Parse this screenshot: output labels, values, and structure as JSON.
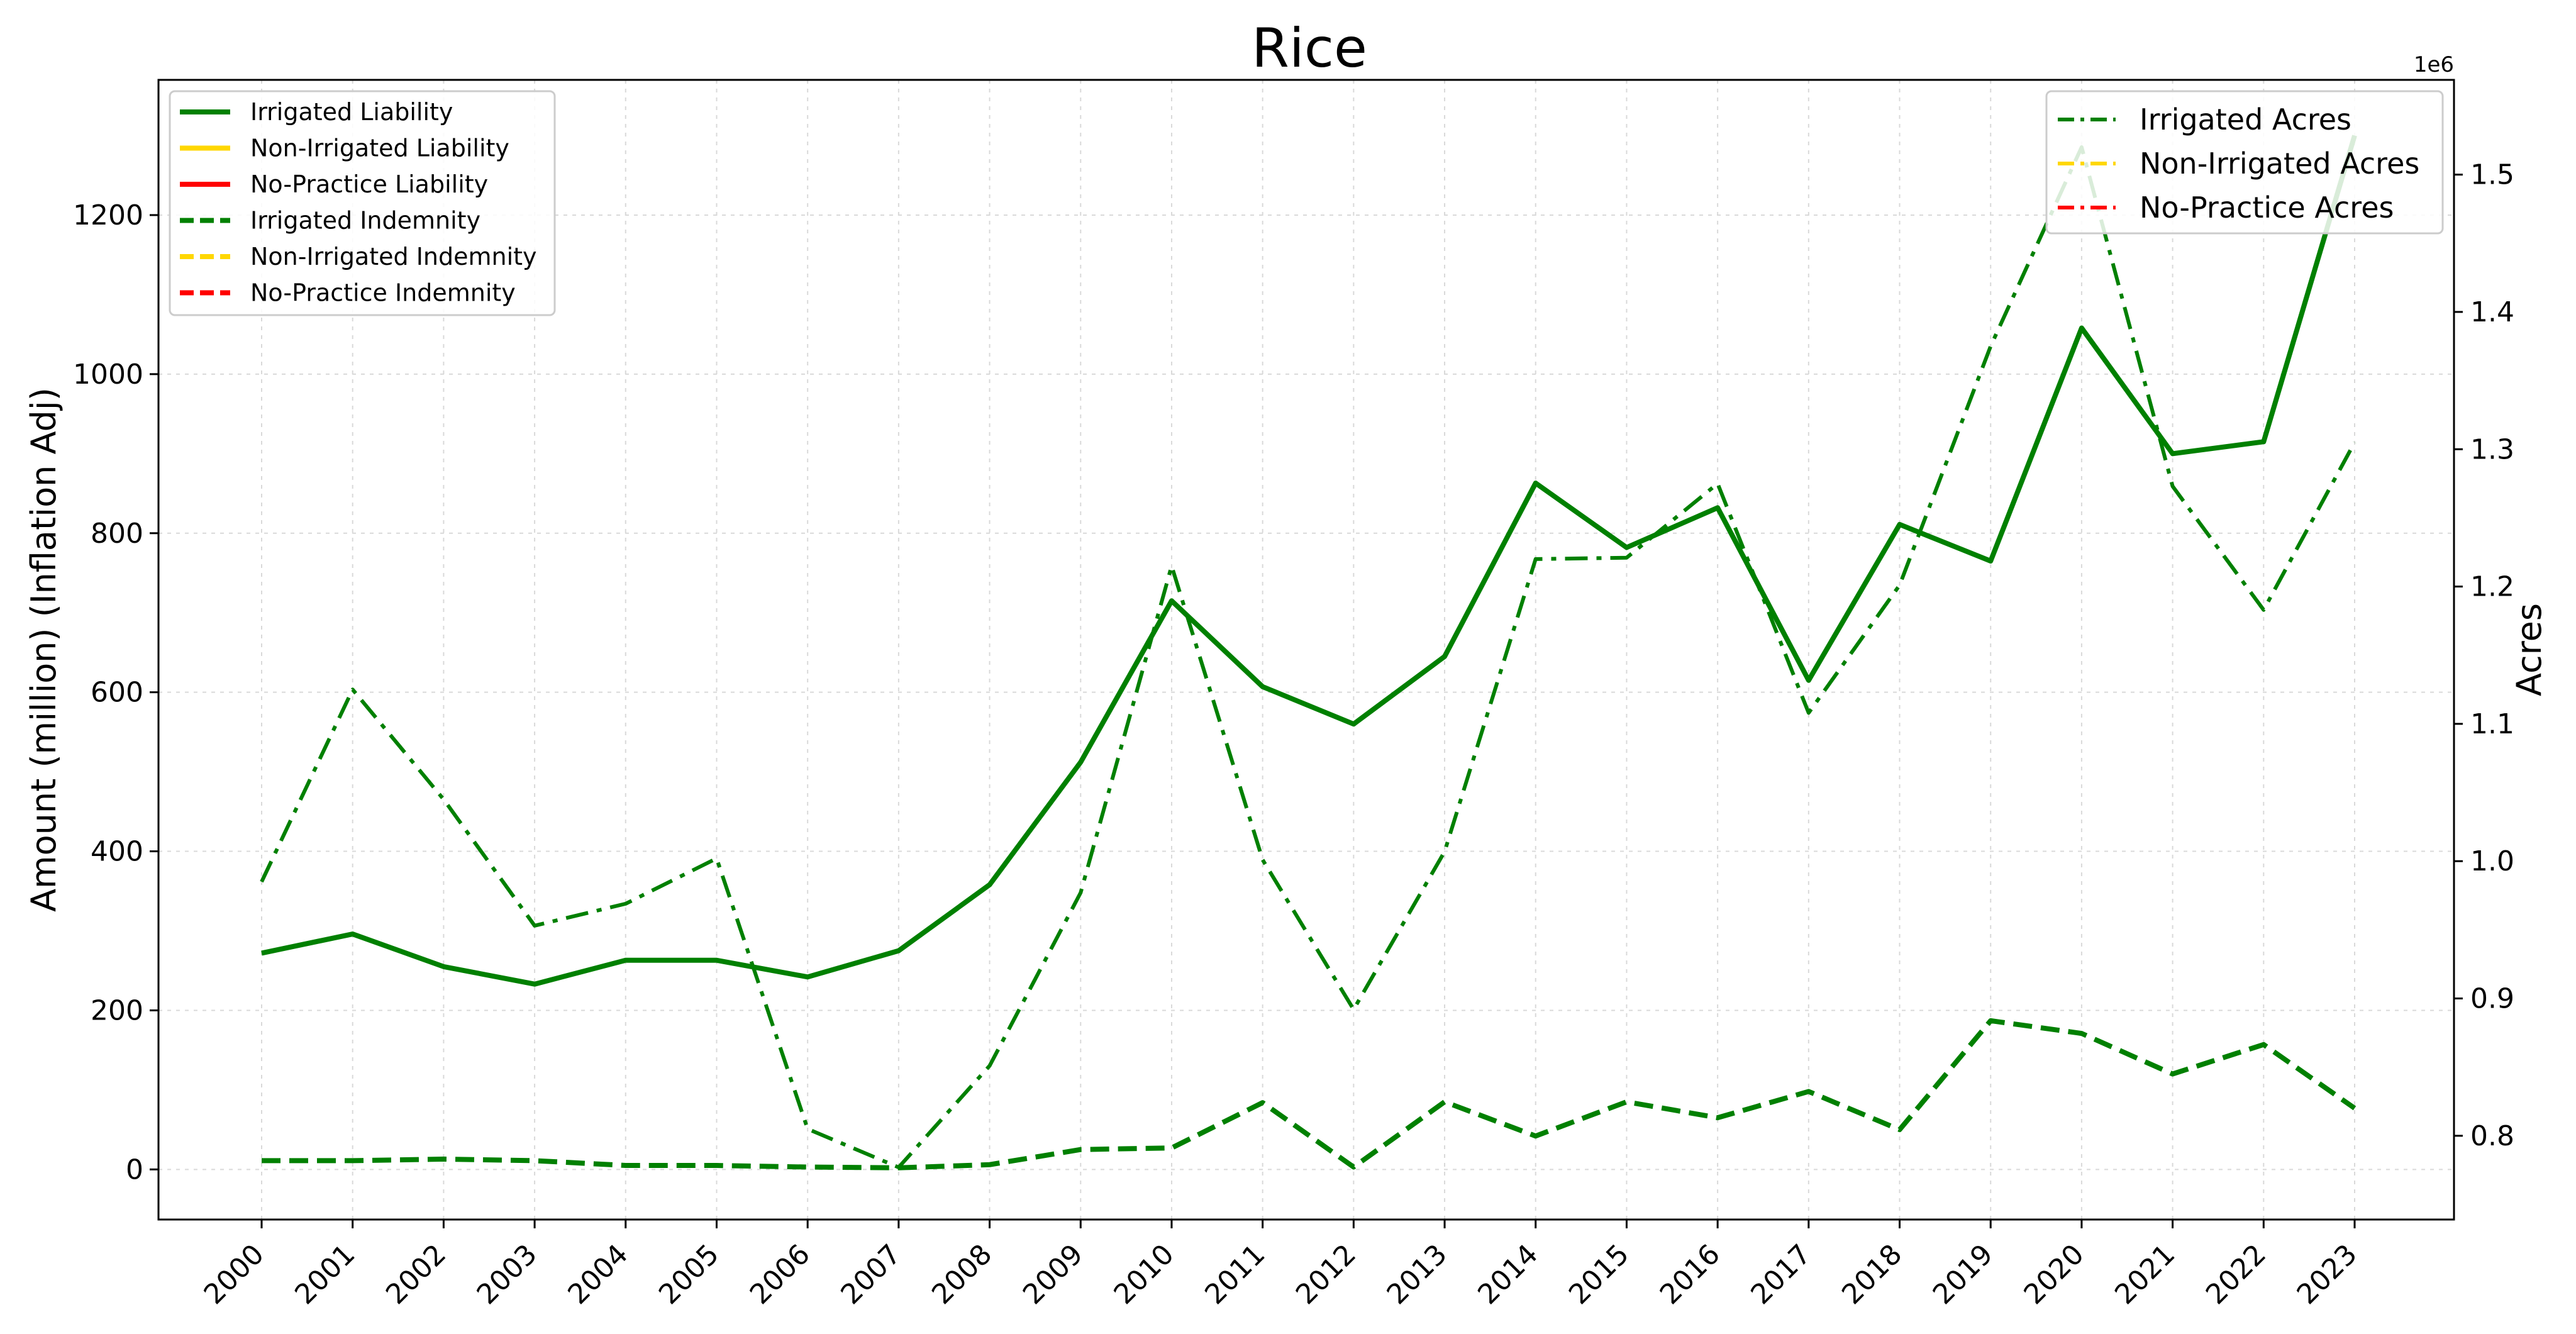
{
  "chart_data": {
    "type": "line",
    "title": "Rice",
    "xlabel": "",
    "ylabel_left": "Amount (million) (Inflation Adj)",
    "ylabel_right": "Acres",
    "right_axis_offset_text": "1e6",
    "x": [
      "2000",
      "2001",
      "2002",
      "2003",
      "2004",
      "2005",
      "2006",
      "2007",
      "2008",
      "2009",
      "2010",
      "2011",
      "2012",
      "2013",
      "2014",
      "2015",
      "2016",
      "2017",
      "2018",
      "2019",
      "2020",
      "2021",
      "2022",
      "2023"
    ],
    "ylim_left": [
      -63,
      1370
    ],
    "yticks_left": [
      "0",
      "200",
      "400",
      "600",
      "800",
      "1000",
      "1200"
    ],
    "ylim_right": [
      0.739,
      1.569
    ],
    "yticks_right": [
      "0.8",
      "0.9",
      "1.0",
      "1.1",
      "1.2",
      "1.3",
      "1.4",
      "1.5"
    ],
    "grid": true,
    "colors": {
      "irrigated": "#008000",
      "non_irrigated": "#FFD700",
      "no_practice": "#FF0000"
    },
    "series_left": [
      {
        "name": "Irrigated Liability",
        "color": "#008000",
        "dash": "solid",
        "values": [
          272,
          296,
          255,
          233,
          263,
          263,
          242,
          275,
          358,
          512,
          715,
          607,
          560,
          645,
          863,
          782,
          832,
          615,
          811,
          765,
          1058,
          900,
          915,
          1300
        ]
      },
      {
        "name": "Non-Irrigated Liability",
        "color": "#FFD700",
        "dash": "solid",
        "values": []
      },
      {
        "name": "No-Practice Liability",
        "color": "#FF0000",
        "dash": "solid",
        "values": []
      },
      {
        "name": "Irrigated Indemnity",
        "color": "#008000",
        "dash": "dashed",
        "values": [
          11,
          11,
          13,
          11,
          5,
          5,
          3,
          2,
          6,
          25,
          27,
          84,
          3,
          85,
          42,
          85,
          65,
          98,
          50,
          187,
          171,
          120,
          157,
          77
        ]
      },
      {
        "name": "Non-Irrigated Indemnity",
        "color": "#FFD700",
        "dash": "dashed",
        "values": []
      },
      {
        "name": "No-Practice Indemnity",
        "color": "#FF0000",
        "dash": "dashed",
        "values": []
      }
    ],
    "series_right": [
      {
        "name": "Irrigated Acres",
        "color": "#008000",
        "dash": "dashdot",
        "values": [
          0.985,
          1.125,
          1.045,
          0.953,
          0.969,
          1.002,
          0.805,
          0.777,
          0.851,
          0.977,
          1.215,
          1.001,
          0.892,
          1.007,
          1.22,
          1.221,
          1.275,
          1.108,
          1.201,
          1.375,
          1.52,
          1.273,
          1.183,
          1.305
        ]
      },
      {
        "name": "Non-Irrigated Acres",
        "color": "#FFD700",
        "dash": "dashdot",
        "values": []
      },
      {
        "name": "No-Practice Acres",
        "color": "#FF0000",
        "dash": "dashdot",
        "values": []
      }
    ],
    "legend_left_position": "upper-left",
    "legend_right_position": "upper-right"
  }
}
